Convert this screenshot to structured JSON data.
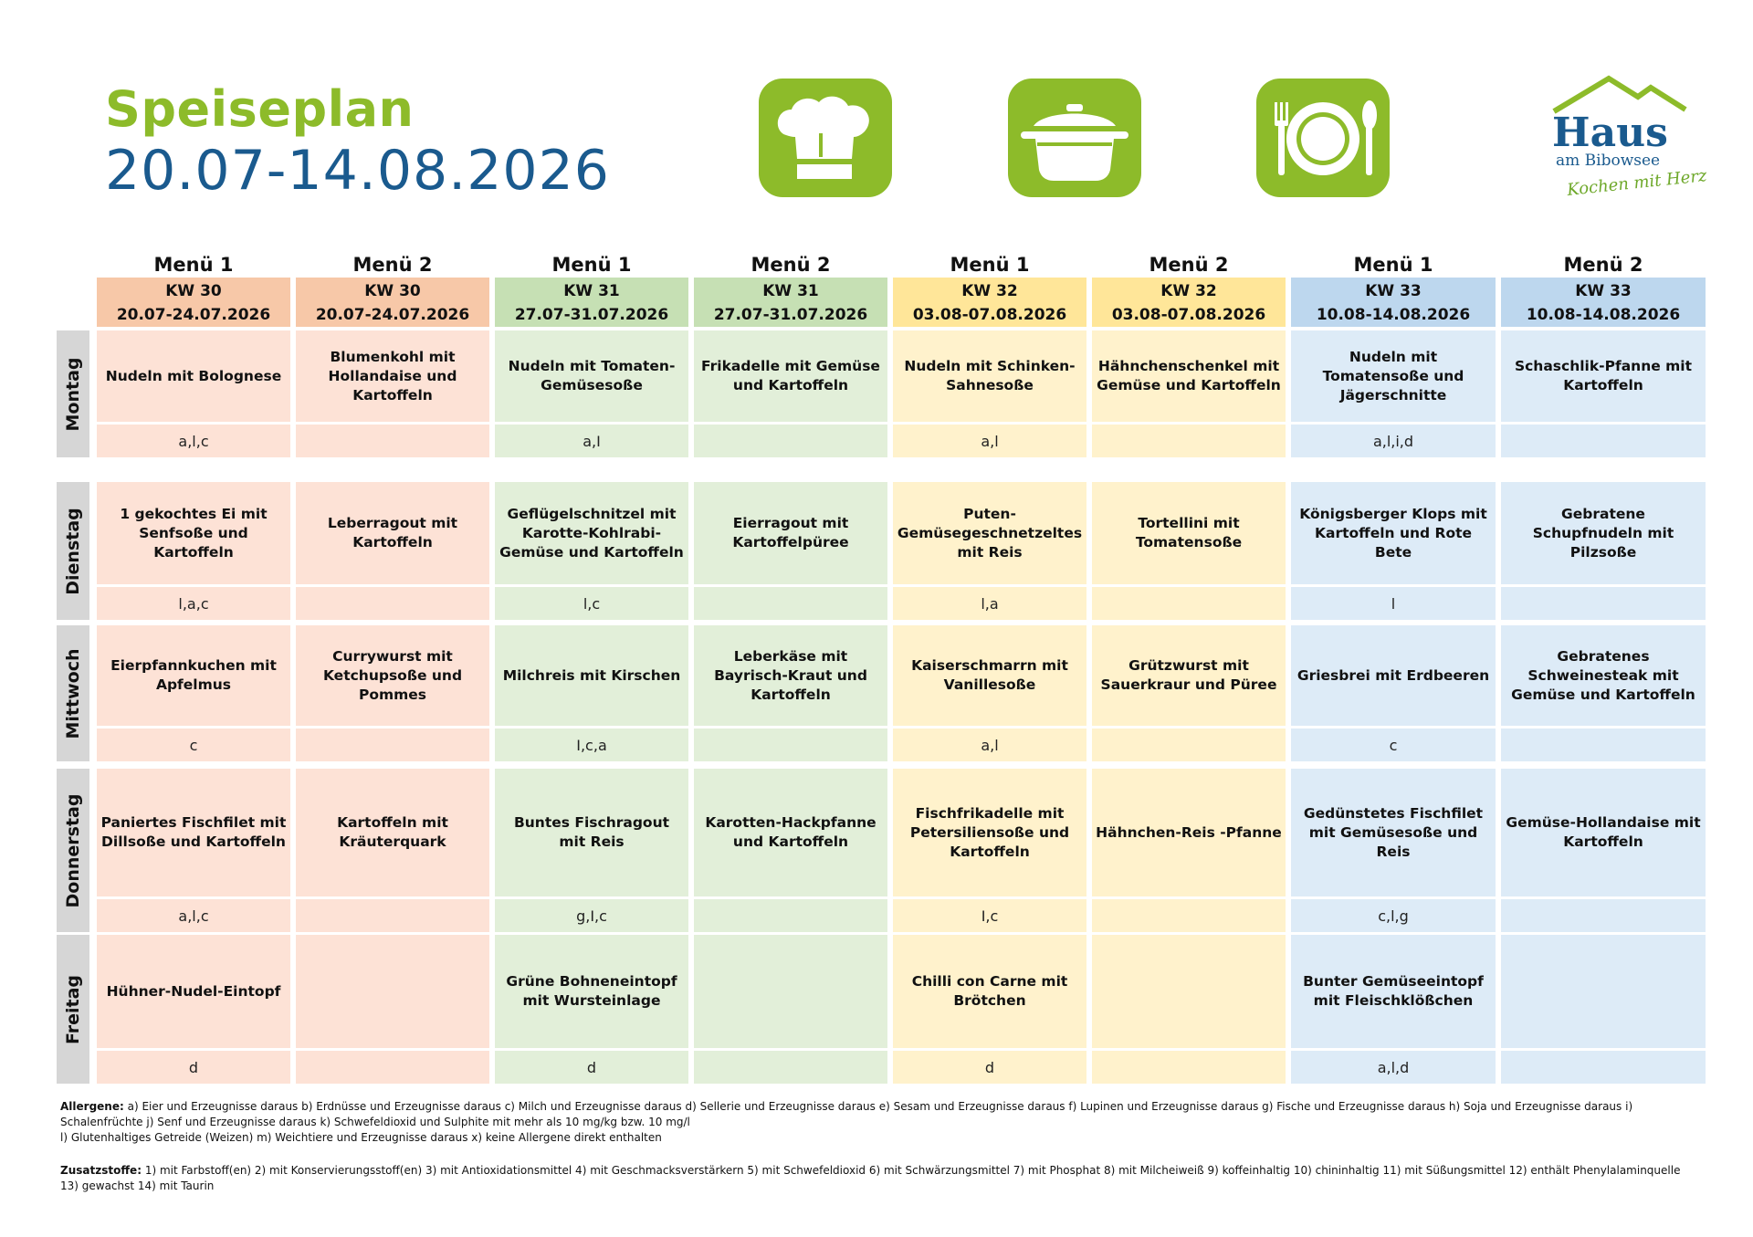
{
  "header": {
    "title": "Speiseplan",
    "date_range": "20.07-14.08.2026"
  },
  "icons": [
    "chef-hat-icon",
    "cooking-pot-icon",
    "plate-cutlery-icon"
  ],
  "logo": {
    "name": "Haus",
    "sub": "am Bibowsee",
    "slogan": "Kochen mit Herz"
  },
  "columns": [
    {
      "menu": "Menü 1",
      "kw": "KW 30",
      "dates": "20.07-24.07.2026",
      "head": "#f7c8a8",
      "body": "#fde2d6"
    },
    {
      "menu": "Menü 2",
      "kw": "KW 30",
      "dates": "20.07-24.07.2026",
      "head": "#f7c8a8",
      "body": "#fde2d6"
    },
    {
      "menu": "Menü 1",
      "kw": "KW 31",
      "dates": "27.07-31.07.2026",
      "head": "#c6e0b4",
      "body": "#e2efd9"
    },
    {
      "menu": "Menü 2",
      "kw": "KW 31",
      "dates": "27.07-31.07.2026",
      "head": "#c6e0b4",
      "body": "#e2efd9"
    },
    {
      "menu": "Menü 1",
      "kw": "KW 32",
      "dates": "03.08-07.08.2026",
      "head": "#ffe699",
      "body": "#fff2cc"
    },
    {
      "menu": "Menü 2",
      "kw": "KW 32",
      "dates": "03.08-07.08.2026",
      "head": "#ffe699",
      "body": "#fff2cc"
    },
    {
      "menu": "Menü 1",
      "kw": "KW 33",
      "dates": "10.08-14.08.2026",
      "head": "#bdd7ee",
      "body": "#ddebf7"
    },
    {
      "menu": "Menü 2",
      "kw": "KW 33",
      "dates": "10.08-14.08.2026",
      "head": "#bdd7ee",
      "body": "#ddebf7"
    }
  ],
  "days": [
    {
      "name": "Montag",
      "dishes": [
        "Nudeln mit Bolognese",
        "Blumenkohl mit Hollandaise und Kartoffeln",
        "Nudeln mit Tomaten-Gemüsesoße",
        "Frikadelle mit Gemüse und Kartoffeln",
        "Nudeln mit Schinken-Sahnesoße",
        "Hähnchenschenkel mit Gemüse und Kartoffeln",
        "Nudeln mit Tomatensoße und Jägerschnitte",
        "Schaschlik-Pfanne mit Kartoffeln"
      ],
      "allergens": [
        "a,l,c",
        "",
        "a,I",
        "",
        "a,l",
        "",
        "a,l,i,d",
        ""
      ]
    },
    {
      "name": "Dienstag",
      "dishes": [
        "1 gekochtes Ei mit Senfsoße und Kartoffeln",
        "Leberragout mit Kartoffeln",
        "Geflügelschnitzel mit Karotte-Kohlrabi-Gemüse und Kartoffeln",
        "Eierragout mit Kartoffelpüree",
        "Puten-Gemüsegeschnetzeltes mit Reis",
        "Tortellini mit Tomatensoße",
        "Königsberger Klops mit Kartoffeln und Rote Bete",
        "Gebratene Schupfnudeln mit Pilzsoße"
      ],
      "allergens": [
        "l,a,c",
        "",
        "l,c",
        "",
        "l,a",
        "",
        "l",
        ""
      ]
    },
    {
      "name": "Mittwoch",
      "dishes": [
        "Eierpfannkuchen mit Apfelmus",
        "Currywurst mit Ketchupsoße und Pommes",
        "Milchreis mit Kirschen",
        "Leberkäse mit Bayrisch-Kraut und Kartoffeln",
        "Kaiserschmarrn mit Vanillesoße",
        "Grützwurst mit Sauerkraur und Püree",
        "Griesbrei mit Erdbeeren",
        "Gebratenes Schweinesteak mit Gemüse und Kartoffeln"
      ],
      "allergens": [
        "c",
        "",
        "I,c,a",
        "",
        "a,l",
        "",
        "c",
        ""
      ]
    },
    {
      "name": "Donnerstag",
      "dishes": [
        "Paniertes Fischfilet mit Dillsoße und Kartoffeln",
        "Kartoffeln mit Kräuterquark",
        "Buntes Fischragout mit Reis",
        "Karotten-Hackpfanne und Kartoffeln",
        "Fischfrikadelle mit Petersiliensoße und Kartoffeln",
        "Hähnchen-Reis -Pfanne",
        "Gedünstetes Fischfilet mit Gemüsesoße und Reis",
        "Gemüse-Hollandaise mit Kartoffeln"
      ],
      "allergens": [
        "a,l,c",
        "",
        "g,I,c",
        "",
        "I,c",
        "",
        "c,l,g",
        ""
      ]
    },
    {
      "name": "Freitag",
      "dishes": [
        "Hühner-Nudel-Eintopf",
        "",
        "Grüne Bohneneintopf mit Wursteinlage",
        "",
        "Chilli con Carne mit Brötchen",
        "",
        "Bunter Gemüseeintopf mit Fleischklößchen",
        ""
      ],
      "allergens": [
        "d",
        "",
        "d",
        "",
        "d",
        "",
        "a,l,d",
        ""
      ]
    }
  ],
  "footer": {
    "allergene_label": "Allergene:",
    "allergene_text": " a) Eier und Erzeugnisse daraus b) Erdnüsse und Erzeugnisse daraus c) Milch und Erzeugnisse daraus d) Sellerie und Erzeugnisse daraus e) Sesam und Erzeugnisse daraus f) Lupinen und Erzeugnisse daraus g) Fische und Erzeugnisse daraus h) Soja und Erzeugnisse daraus i) Schalenfrüchte j) Senf und Erzeugnisse daraus k) Schwefeldioxid und Sulphite mit mehr als 10 mg/kg bzw. 10 mg/l",
    "allergene_text2": " l) Glutenhaltiges Getreide (Weizen) m) Weichtiere und Erzeugnisse daraus x) keine Allergene direkt enthalten",
    "zusatz_label": "Zusatzstoffe:",
    "zusatz_text": " 1) mit Farbstoff(en) 2) mit Konservierungsstoff(en) 3) mit Antioxidationsmittel 4) mit Geschmacksverstärkern 5) mit Schwefeldioxid 6) mit Schwärzungsmittel 7) mit Phosphat 8) mit Milcheiweiß 9) koffeinhaltig 10) chininhaltig 11) mit Süßungsmittel 12) enthält Phenylalaminquelle 13) gewachst 14) mit Taurin"
  }
}
